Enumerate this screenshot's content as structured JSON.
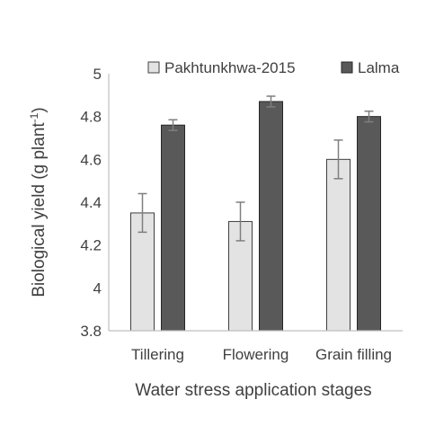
{
  "chart_data": {
    "type": "bar",
    "xlabel": "Water stress application stages",
    "ylabel_main": "Biological yield (g plant",
    "ylabel_sup": "-1",
    "ylabel_close": ")",
    "categories": [
      "Tillering",
      "Flowering",
      "Grain filling"
    ],
    "ylim": [
      3.8,
      5
    ],
    "yticks": [
      3.8,
      4,
      4.2,
      4.4,
      4.6,
      4.8,
      5
    ],
    "ytick_labels": [
      "3.8",
      "4",
      "4.2",
      "4.4",
      "4.6",
      "4.8",
      "5"
    ],
    "grid": false,
    "legend_position": "top",
    "series": [
      {
        "name": "Pakhtunkhwa-2015",
        "color": "#e3e3e3",
        "values": [
          4.35,
          4.31,
          4.6
        ],
        "errors": [
          0.09,
          0.09,
          0.09
        ]
      },
      {
        "name": "Lalma",
        "color": "#595959",
        "values": [
          4.76,
          4.87,
          4.8
        ],
        "errors": [
          0.025,
          0.025,
          0.025
        ]
      }
    ]
  }
}
